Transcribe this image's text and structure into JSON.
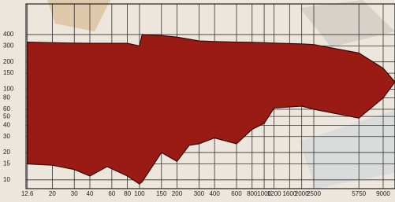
{
  "chart_data": {
    "type": "area-band",
    "x": [
      12.6,
      20,
      30,
      40,
      55,
      80,
      100,
      105,
      150,
      200,
      250,
      300,
      400,
      600,
      800,
      1000,
      1200,
      2000,
      2500,
      5750,
      9000,
      11200
    ],
    "upper": [
      330,
      325,
      322,
      320,
      320,
      320,
      300,
      400,
      390,
      375,
      355,
      340,
      335,
      330,
      328,
      325,
      322,
      315,
      310,
      250,
      170,
      120
    ],
    "lower": [
      15,
      14.5,
      13,
      11,
      14,
      11,
      9,
      9.5,
      20,
      16,
      24,
      25,
      29,
      25,
      36,
      42,
      62,
      65,
      60,
      48,
      80,
      120
    ],
    "color": "#9a1a14",
    "xlog": true,
    "ylog": true,
    "grid": true,
    "xlim": [
      12.3,
      11200
    ],
    "ylim": [
      8,
      870
    ],
    "xticks": [
      12.6,
      20,
      30,
      40,
      60,
      80,
      100,
      150,
      200,
      300,
      400,
      600,
      800,
      1000,
      1200,
      1600,
      2000,
      2500,
      5750,
      9000
    ],
    "yticks": [
      10,
      15,
      20,
      30,
      40,
      50,
      60,
      80,
      100,
      150,
      200,
      300,
      400
    ]
  }
}
